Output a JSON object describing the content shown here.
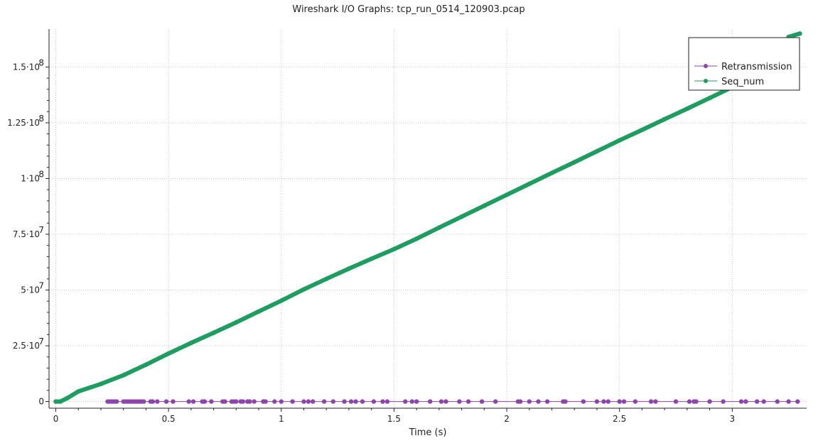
{
  "chart_data": {
    "type": "line",
    "title": "Wireshark I/O Graphs: tcp_run_0514_120903.pcap",
    "xlabel": "Time (s)",
    "ylabel": "",
    "xlim": [
      -0.03,
      3.33
    ],
    "ylim": [
      -3000000,
      167000000
    ],
    "x_ticks": [
      {
        "value": 0,
        "label": "0"
      },
      {
        "value": 0.5,
        "label": "0.5"
      },
      {
        "value": 1,
        "label": "1"
      },
      {
        "value": 1.5,
        "label": "1.5"
      },
      {
        "value": 2,
        "label": "2"
      },
      {
        "value": 2.5,
        "label": "2.5"
      },
      {
        "value": 3,
        "label": "3"
      }
    ],
    "y_ticks": [
      {
        "value": 0,
        "base": "0",
        "exp": ""
      },
      {
        "value": 25000000,
        "base": "2.5·10",
        "exp": "7"
      },
      {
        "value": 50000000,
        "base": "5·10",
        "exp": "7"
      },
      {
        "value": 75000000,
        "base": "7.5·10",
        "exp": "7"
      },
      {
        "value": 100000000,
        "base": "1·10",
        "exp": "8"
      },
      {
        "value": 125000000,
        "base": "1.25·10",
        "exp": "8"
      },
      {
        "value": 150000000,
        "base": "1.5·10",
        "exp": "8"
      }
    ],
    "grid": true,
    "legend_position": "top-right",
    "series": [
      {
        "name": "Retransmission",
        "color": "#8e44ad",
        "marker": "dot",
        "x": [
          0.23,
          0.24,
          0.25,
          0.26,
          0.27,
          0.3,
          0.31,
          0.32,
          0.33,
          0.34,
          0.35,
          0.36,
          0.37,
          0.38,
          0.39,
          0.42,
          0.43,
          0.45,
          0.49,
          0.52,
          0.59,
          0.61,
          0.65,
          0.66,
          0.69,
          0.74,
          0.75,
          0.78,
          0.79,
          0.8,
          0.82,
          0.83,
          0.85,
          0.86,
          0.88,
          0.92,
          0.93,
          0.97,
          1.0,
          1.05,
          1.1,
          1.12,
          1.14,
          1.19,
          1.23,
          1.28,
          1.31,
          1.33,
          1.36,
          1.41,
          1.45,
          1.47,
          1.55,
          1.58,
          1.6,
          1.66,
          1.71,
          1.73,
          1.79,
          1.83,
          1.89,
          1.95,
          2.05,
          2.06,
          2.1,
          2.14,
          2.18,
          2.25,
          2.26,
          2.34,
          2.4,
          2.43,
          2.45,
          2.5,
          2.52,
          2.57,
          2.64,
          2.66,
          2.75,
          2.81,
          2.83,
          2.84,
          2.9,
          2.96,
          3.04,
          3.06,
          3.11,
          3.14,
          3.2,
          3.25,
          3.29
        ],
        "y": [
          0,
          0,
          0,
          0,
          0,
          0,
          0,
          0,
          0,
          0,
          0,
          0,
          0,
          0,
          0,
          0,
          0,
          0,
          0,
          0,
          0,
          0,
          0,
          0,
          0,
          0,
          0,
          0,
          0,
          0,
          0,
          0,
          0,
          0,
          0,
          0,
          0,
          0,
          0,
          0,
          0,
          0,
          0,
          0,
          0,
          0,
          0,
          0,
          0,
          0,
          0,
          0,
          0,
          0,
          0,
          0,
          0,
          0,
          0,
          0,
          0,
          0,
          0,
          0,
          0,
          0,
          0,
          0,
          0,
          0,
          0,
          0,
          0,
          0,
          0,
          0,
          0,
          0,
          0,
          0,
          0,
          0,
          0,
          0,
          0,
          0,
          0,
          0,
          0,
          0,
          0
        ]
      },
      {
        "name": "Seq_num",
        "color": "#1f9d60",
        "marker": "dot",
        "x": [
          0,
          0.02,
          0.05,
          0.1,
          0.2,
          0.3,
          0.4,
          0.5,
          0.6,
          0.7,
          0.8,
          0.9,
          1.0,
          1.1,
          1.2,
          1.3,
          1.4,
          1.5,
          1.6,
          1.7,
          1.8,
          1.9,
          2.0,
          2.1,
          2.2,
          2.3,
          2.4,
          2.5,
          2.6,
          2.7,
          2.8,
          2.9,
          3.0,
          3.1,
          3.2,
          3.25,
          3.3
        ],
        "y": [
          0,
          0,
          1500000,
          4500000,
          7900000,
          11800000,
          16500000,
          21500000,
          26300000,
          30800000,
          35500000,
          40400000,
          45200000,
          50300000,
          55000000,
          59600000,
          64000000,
          68300000,
          73000000,
          78000000,
          82900000,
          87800000,
          92700000,
          97600000,
          102500000,
          107300000,
          112200000,
          117100000,
          121800000,
          126600000,
          131300000,
          136100000,
          141000000,
          146200000,
          151700000,
          163500000,
          165000000
        ]
      }
    ]
  }
}
